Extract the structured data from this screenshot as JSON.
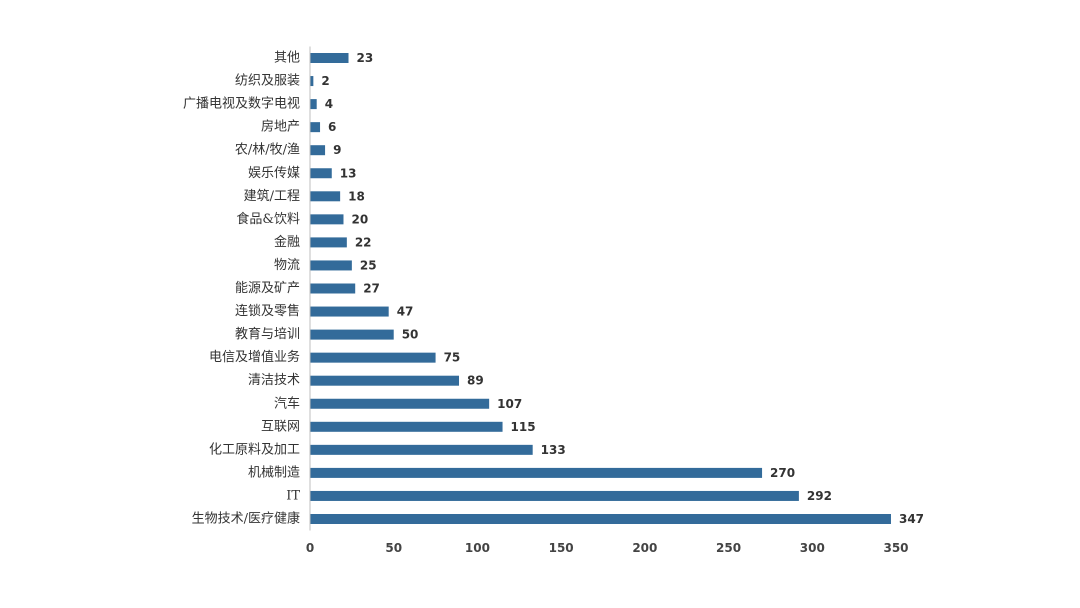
{
  "chart_data": {
    "type": "bar",
    "orientation": "horizontal",
    "title": "",
    "xlabel": "",
    "ylabel": "",
    "categories": [
      "其他",
      "纺织及服装",
      "广播电视及数字电视",
      "房地产",
      "农/林/牧/渔",
      "娱乐传媒",
      "建筑/工程",
      "食品&饮料",
      "金融",
      "物流",
      "能源及矿产",
      "连锁及零售",
      "教育与培训",
      "电信及增值业务",
      "清洁技术",
      "汽车",
      "互联网",
      "化工原料及加工",
      "机械制造",
      "IT",
      "生物技术/医疗健康"
    ],
    "values": [
      23,
      2,
      4,
      6,
      9,
      13,
      18,
      20,
      22,
      25,
      27,
      47,
      50,
      75,
      89,
      107,
      115,
      133,
      270,
      292,
      347
    ],
    "xlim": [
      0,
      350
    ],
    "xticks": [
      0,
      50,
      100,
      150,
      200,
      250,
      300,
      350
    ],
    "bar_color": "#336b9a",
    "axis_color": "#bfbfbf",
    "grid": false,
    "legend": "none",
    "data_labels": true
  }
}
